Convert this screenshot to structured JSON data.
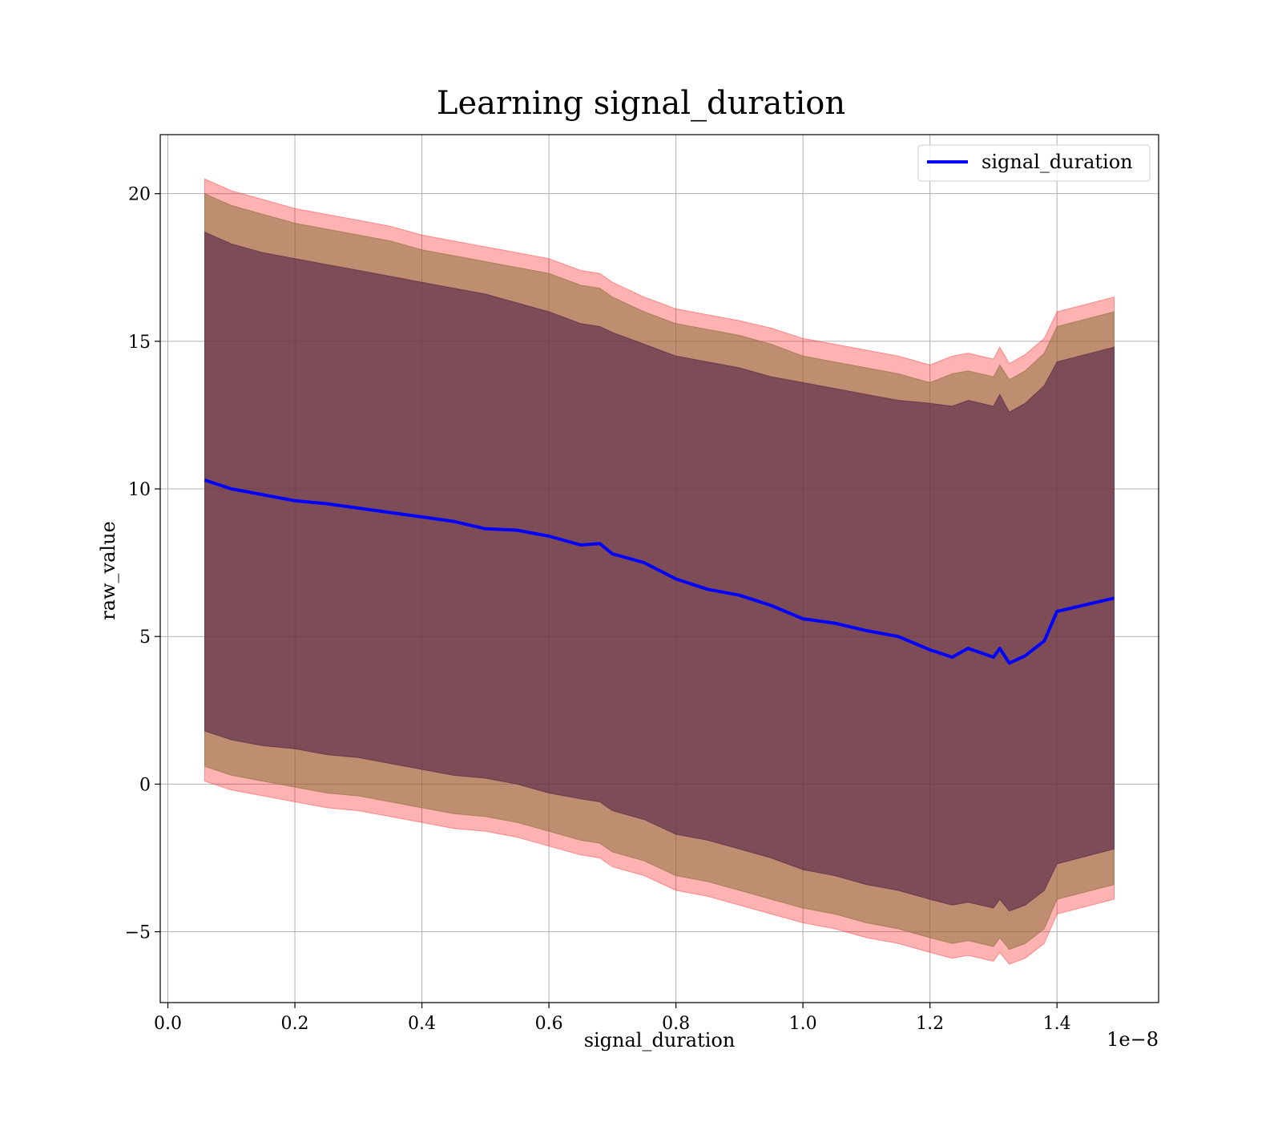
{
  "chart_data": {
    "type": "line",
    "title": "Learning signal_duration",
    "xlabel": "signal_duration",
    "ylabel": "raw_value",
    "x_offset_label": "1e−8",
    "xlim": [
      -0.012,
      1.56
    ],
    "ylim": [
      -7.4,
      22.0
    ],
    "x_ticks": [
      0.0,
      0.2,
      0.4,
      0.6,
      0.8,
      1.0,
      1.2,
      1.4
    ],
    "x_tick_labels": [
      "0.0",
      "0.2",
      "0.4",
      "0.6",
      "0.8",
      "1.0",
      "1.2",
      "1.4"
    ],
    "y_ticks": [
      -5,
      0,
      5,
      10,
      15,
      20
    ],
    "y_tick_labels": [
      "−5",
      "0",
      "5",
      "10",
      "15",
      "20"
    ],
    "grid": true,
    "legend": {
      "position": "top-right",
      "entries": [
        "signal_duration"
      ]
    },
    "colors": {
      "line": "#0000ff",
      "band_outer": "#ff0000",
      "band_mid": "#8b6f3a",
      "band_inner": "#5a2a4a"
    },
    "x": [
      0.058,
      0.1,
      0.15,
      0.2,
      0.25,
      0.3,
      0.35,
      0.4,
      0.45,
      0.5,
      0.55,
      0.6,
      0.65,
      0.68,
      0.7,
      0.75,
      0.8,
      0.85,
      0.9,
      0.95,
      1.0,
      1.05,
      1.1,
      1.15,
      1.2,
      1.235,
      1.26,
      1.3,
      1.31,
      1.325,
      1.35,
      1.38,
      1.4,
      1.49
    ],
    "series": [
      {
        "name": "signal_duration",
        "values": [
          10.3,
          10.0,
          9.8,
          9.6,
          9.5,
          9.35,
          9.2,
          9.05,
          8.9,
          8.65,
          8.6,
          8.4,
          8.1,
          8.15,
          7.8,
          7.5,
          6.95,
          6.6,
          6.4,
          6.05,
          5.6,
          5.45,
          5.2,
          5.0,
          4.55,
          4.3,
          4.6,
          4.3,
          4.6,
          4.1,
          4.35,
          4.85,
          5.85,
          6.3
        ]
      },
      {
        "name": "",
        "values": [
          20.5,
          20.1,
          19.8,
          19.5,
          19.3,
          19.1,
          18.9,
          18.6,
          18.4,
          18.2,
          18.0,
          17.8,
          17.4,
          17.3,
          17.0,
          16.5,
          16.1,
          15.9,
          15.7,
          15.45,
          15.1,
          14.9,
          14.7,
          14.5,
          14.2,
          14.5,
          14.6,
          14.4,
          14.8,
          14.25,
          14.55,
          15.1,
          16.0,
          16.5
        ]
      },
      {
        "name": "",
        "values": [
          20.0,
          19.6,
          19.3,
          19.0,
          18.8,
          18.6,
          18.4,
          18.1,
          17.9,
          17.7,
          17.5,
          17.3,
          16.9,
          16.8,
          16.5,
          16.0,
          15.6,
          15.4,
          15.2,
          14.9,
          14.5,
          14.3,
          14.1,
          13.9,
          13.6,
          13.9,
          14.0,
          13.8,
          14.2,
          13.7,
          14.0,
          14.6,
          15.5,
          16.0
        ]
      },
      {
        "name": "",
        "values": [
          18.7,
          18.3,
          18.0,
          17.8,
          17.6,
          17.4,
          17.2,
          17.0,
          16.8,
          16.6,
          16.3,
          16.0,
          15.6,
          15.5,
          15.3,
          14.9,
          14.5,
          14.3,
          14.1,
          13.8,
          13.6,
          13.4,
          13.2,
          13.0,
          12.9,
          12.8,
          13.0,
          12.8,
          13.2,
          12.6,
          12.9,
          13.5,
          14.3,
          14.8
        ]
      },
      {
        "name": "",
        "values": [
          1.8,
          1.5,
          1.3,
          1.2,
          1.0,
          0.9,
          0.7,
          0.5,
          0.3,
          0.2,
          0.0,
          -0.3,
          -0.5,
          -0.6,
          -0.9,
          -1.2,
          -1.7,
          -1.9,
          -2.2,
          -2.5,
          -2.9,
          -3.1,
          -3.4,
          -3.6,
          -3.9,
          -4.1,
          -4.0,
          -4.2,
          -3.9,
          -4.3,
          -4.1,
          -3.6,
          -2.7,
          -2.2
        ]
      },
      {
        "name": "",
        "values": [
          0.6,
          0.3,
          0.1,
          -0.1,
          -0.3,
          -0.4,
          -0.6,
          -0.8,
          -1.0,
          -1.1,
          -1.3,
          -1.6,
          -1.9,
          -2.0,
          -2.3,
          -2.6,
          -3.1,
          -3.3,
          -3.6,
          -3.9,
          -4.2,
          -4.4,
          -4.7,
          -4.9,
          -5.2,
          -5.4,
          -5.3,
          -5.5,
          -5.2,
          -5.6,
          -5.4,
          -4.9,
          -3.9,
          -3.4
        ]
      },
      {
        "name": "",
        "values": [
          0.1,
          -0.2,
          -0.4,
          -0.6,
          -0.8,
          -0.9,
          -1.1,
          -1.3,
          -1.5,
          -1.6,
          -1.8,
          -2.1,
          -2.4,
          -2.5,
          -2.8,
          -3.1,
          -3.6,
          -3.8,
          -4.1,
          -4.4,
          -4.7,
          -4.9,
          -5.2,
          -5.4,
          -5.7,
          -5.9,
          -5.8,
          -6.0,
          -5.7,
          -6.1,
          -5.9,
          -5.4,
          -4.4,
          -3.9
        ]
      }
    ]
  }
}
